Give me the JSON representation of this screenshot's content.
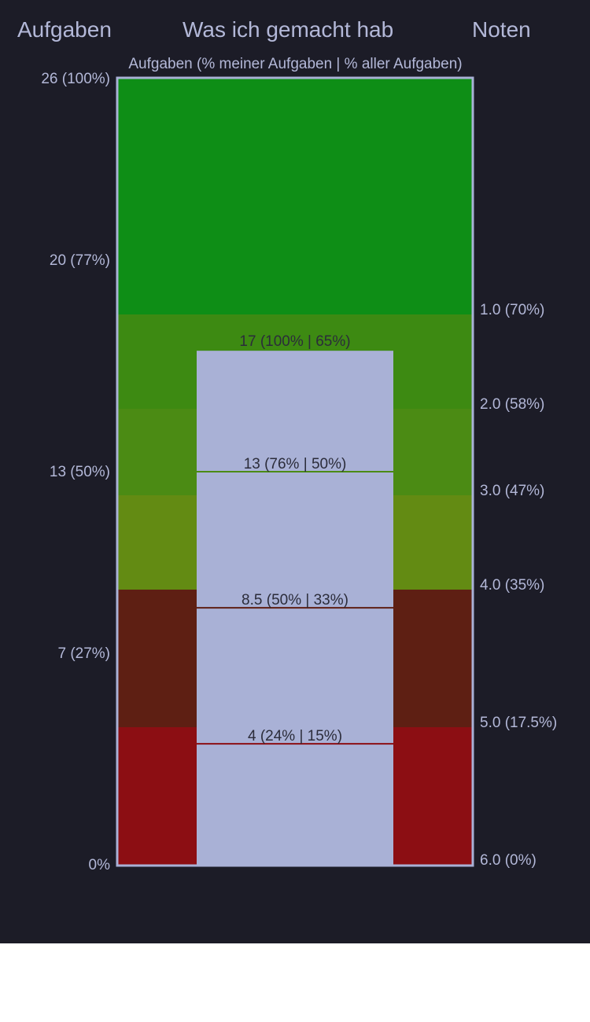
{
  "header": {
    "left_title": "Aufgaben",
    "center_title": "Was ich gemacht hab",
    "right_title": "Noten",
    "subtitle": "Aufgaben (% meiner Aufgaben | % aller Aufgaben)"
  },
  "chart_data": {
    "type": "bar",
    "total_tasks": 26,
    "ylim": [
      0,
      26
    ],
    "left_axis_ticks": [
      {
        "value": 26,
        "label": "26 (100%)"
      },
      {
        "value": 20,
        "label": "20 (77%)"
      },
      {
        "value": 13,
        "label": "13 (50%)"
      },
      {
        "value": 7,
        "label": "7 (27%)"
      },
      {
        "value": 0,
        "label": "0%"
      }
    ],
    "grade_bands": [
      {
        "from_pct": 70,
        "to_pct": 100,
        "color": "#0e8e16"
      },
      {
        "from_pct": 58,
        "to_pct": 70,
        "color": "#3d8a12"
      },
      {
        "from_pct": 47,
        "to_pct": 58,
        "color": "#4b8b14"
      },
      {
        "from_pct": 35,
        "to_pct": 47,
        "color": "#638b13"
      },
      {
        "from_pct": 17.5,
        "to_pct": 35,
        "color": "#5e1f13"
      },
      {
        "from_pct": 0,
        "to_pct": 17.5,
        "color": "#8c0e13"
      }
    ],
    "right_axis_ticks": [
      {
        "pct": 70,
        "label": "1.0 (70%)"
      },
      {
        "pct": 58,
        "label": "2.0 (58%)"
      },
      {
        "pct": 47,
        "label": "3.0 (47%)"
      },
      {
        "pct": 35,
        "label": "4.0 (35%)"
      },
      {
        "pct": 17.5,
        "label": "5.0 (17.5%)"
      },
      {
        "pct": 0,
        "label": "6.0 (0%)"
      }
    ],
    "bar": {
      "value": 17,
      "label": "17 (100% | 65%)",
      "color": "#a9b1d6"
    },
    "markers": [
      {
        "value": 13,
        "label": "13 (76% | 50%)",
        "color": "#4b8b14"
      },
      {
        "value": 8.5,
        "label": "8.5 (50% | 33%)",
        "color": "#5e1f13"
      },
      {
        "value": 4,
        "label": "4 (24% | 15%)",
        "color": "#8c0e13"
      }
    ],
    "frame_color": "#a9b1d6"
  }
}
